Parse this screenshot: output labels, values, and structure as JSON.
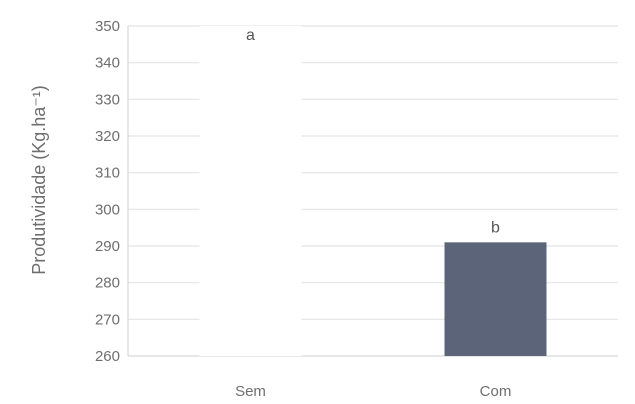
{
  "chart_data": {
    "type": "bar",
    "categories": [
      "Sem",
      "Com"
    ],
    "values": [
      350,
      291
    ],
    "annotations": [
      "a",
      "b"
    ],
    "title": "",
    "xlabel": "",
    "ylabel": "Produtividade (Kg.ha⁻¹)",
    "ylim": [
      260,
      350
    ],
    "yticks": [
      260,
      270,
      280,
      290,
      300,
      310,
      320,
      330,
      340,
      350
    ],
    "grid": true,
    "colors": {
      "bar": "#5b6479",
      "grid": "#e4e4e4",
      "axis": "#cfcfcf"
    }
  }
}
